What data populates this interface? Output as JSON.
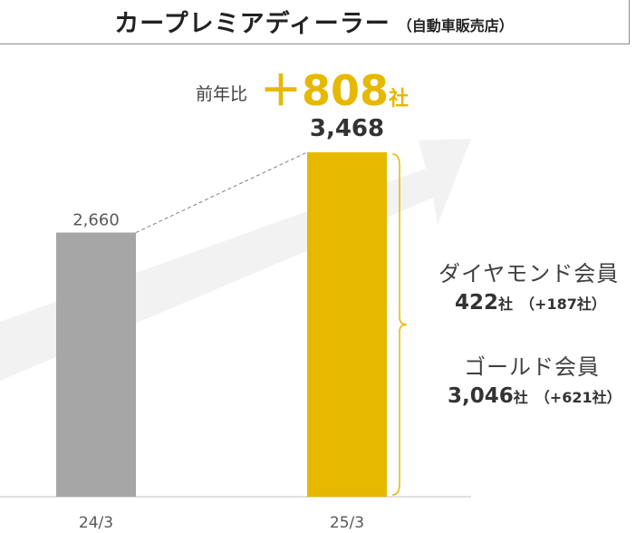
{
  "header": {
    "title": "カープレミアディーラー",
    "subtitle": "（自動車販売店）"
  },
  "yoy": {
    "label": "前年比",
    "value": "＋808",
    "unit": "社"
  },
  "members": [
    {
      "name": "ダイヤモンド会員",
      "count": "422",
      "unit": "社",
      "delta": "（+187社）"
    },
    {
      "name": "ゴールド会員",
      "count": "3,046",
      "unit": "社",
      "delta": "（+621社）"
    }
  ],
  "colors": {
    "bar_prev": "#a6a6a6",
    "bar_curr": "#e6b800",
    "accent": "#e6b800",
    "arrow": "#f2f2f2"
  },
  "chart_data": {
    "type": "bar",
    "categories": [
      "24/3",
      "25/3"
    ],
    "values": [
      2660,
      3468
    ],
    "value_labels": [
      "2,660",
      "3,468"
    ],
    "ylim": [
      0,
      3700
    ],
    "grid": false
  }
}
